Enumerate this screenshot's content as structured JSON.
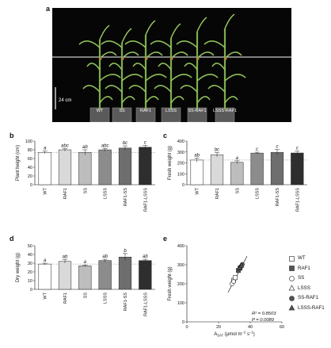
{
  "panels": {
    "a": "a",
    "b": "b",
    "c": "c",
    "d": "d",
    "e": "e"
  },
  "photo": {
    "scale_label": "24 cm",
    "pot_labels": [
      "WT",
      "SS",
      "RAF1",
      "LSSS",
      "SS-RAF1",
      "LSSS-RAF1"
    ]
  },
  "colors": {
    "WT": "#ffffff",
    "RAF1": "#d9d9d9",
    "SS": "#bdbdbd",
    "LSSS": "#8c8c8c",
    "RAF1-SS": "#6e6e6e",
    "RAF1-LSSS": "#2e2e2e"
  },
  "chart_data": [
    {
      "id": "b",
      "type": "bar",
      "ylabel": "Plant height (cm)",
      "categories": [
        "WT",
        "RAF1",
        "SS",
        "LSSS",
        "RAF1-SS",
        "RAF1-LSSS"
      ],
      "values": [
        74,
        80,
        74,
        80,
        84,
        86
      ],
      "errors": [
        3,
        3,
        6,
        3,
        5,
        4
      ],
      "letters": [
        "a",
        "abc",
        "ab",
        "abc",
        "bc",
        "c"
      ],
      "ylim": [
        0,
        100
      ],
      "yticks": [
        0,
        20,
        40,
        60,
        80,
        100
      ],
      "reference_line": 74
    },
    {
      "id": "c",
      "type": "bar",
      "ylabel": "Fresh weight (g)",
      "categories": [
        "WT",
        "RAF1",
        "SS",
        "LSSS",
        "RAF1-SS",
        "RAF1-LSSS"
      ],
      "values": [
        226,
        275,
        205,
        290,
        297,
        291
      ],
      "errors": [
        18,
        20,
        14,
        8,
        25,
        18
      ],
      "letters": [
        "ab",
        "bc",
        "a",
        "c",
        "c",
        "c"
      ],
      "ylim": [
        0,
        400
      ],
      "yticks": [
        0,
        100,
        200,
        300,
        400
      ],
      "reference_line": 226
    },
    {
      "id": "d",
      "type": "bar",
      "ylabel": "Dry weight (g)",
      "categories": [
        "WT",
        "RAF1",
        "SS",
        "LSSS",
        "RAF1-SS",
        "RAF1-LSSS"
      ],
      "values": [
        29,
        32,
        27,
        33,
        37,
        33
      ],
      "errors": [
        1,
        2,
        1,
        1.5,
        4,
        1.5
      ],
      "letters": [
        "a",
        "ab",
        "a",
        "ab",
        "b",
        "ab"
      ],
      "ylim": [
        0,
        50
      ],
      "yticks": [
        0,
        10,
        20,
        30,
        40,
        50
      ],
      "reference_line": 29
    },
    {
      "id": "e",
      "type": "scatter",
      "ylabel": "Fresh weight (g)",
      "xlabel_main": "A",
      "xlabel_sub": "SAT",
      "xlabel_rest": " (μmol m",
      "xlabel_exp1": "−2",
      "xlabel_mid": " s",
      "xlabel_exp2": "−1",
      "xlabel_end": ")",
      "xlim": [
        0,
        60
      ],
      "ylim": [
        0,
        400
      ],
      "xticks": [
        0,
        20,
        40,
        60
      ],
      "yticks": [
        0,
        100,
        200,
        300,
        400
      ],
      "series": [
        {
          "name": "WT",
          "marker": "square-open",
          "x": [
            29.5,
            30.5
          ],
          "y": [
            218,
            232
          ]
        },
        {
          "name": "RAF1",
          "marker": "square-filled",
          "x": [
            32.5,
            33.5
          ],
          "y": [
            270,
            282
          ]
        },
        {
          "name": "SS",
          "marker": "circle-open",
          "x": [
            28.5,
            29.5
          ],
          "y": [
            200,
            212
          ]
        },
        {
          "name": "LSSS",
          "marker": "triangle-open",
          "x": [
            33,
            34
          ],
          "y": [
            285,
            295
          ]
        },
        {
          "name": "SS-RAF1",
          "marker": "circle-filled",
          "x": [
            34,
            35
          ],
          "y": [
            290,
            302
          ]
        },
        {
          "name": "LSSS-RAF1",
          "marker": "triangle-filled",
          "x": [
            33.5,
            34.5
          ],
          "y": [
            285,
            296
          ]
        }
      ],
      "fit_line": {
        "x": [
          26,
          38
        ],
        "y": [
          155,
          345
        ]
      },
      "stats": {
        "r2": "R² = 0.8503",
        "p": "P = 0.0089"
      }
    }
  ]
}
